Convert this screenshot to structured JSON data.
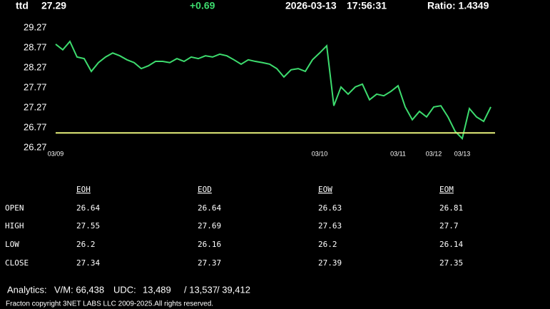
{
  "header": {
    "symbol": "ttd",
    "price": "27.29",
    "change": "+0.69",
    "date": "2026-03-13",
    "time": "17:56:31",
    "ratio": "Ratio: 1.4349"
  },
  "chart_data": {
    "type": "line",
    "color": "#3ddc6e",
    "categories": [
      "03/09",
      null,
      null,
      null,
      null,
      null,
      null,
      null,
      null,
      null,
      null,
      null,
      null,
      null,
      null,
      null,
      null,
      null,
      null,
      null,
      null,
      null,
      null,
      null,
      null,
      null,
      null,
      null,
      null,
      null,
      null,
      null,
      null,
      null,
      null,
      null,
      null,
      "03/10",
      null,
      null,
      null,
      null,
      null,
      null,
      null,
      null,
      null,
      null,
      "03/11",
      null,
      null,
      null,
      null,
      "03/12",
      null,
      null,
      null,
      "03/13",
      null,
      null,
      null,
      null
    ],
    "values": [
      28.86,
      28.72,
      28.93,
      28.54,
      28.5,
      28.18,
      28.4,
      28.54,
      28.64,
      28.57,
      28.47,
      28.4,
      28.25,
      28.32,
      28.43,
      28.43,
      28.4,
      28.5,
      28.43,
      28.54,
      28.5,
      28.57,
      28.54,
      28.61,
      28.57,
      28.47,
      28.36,
      28.47,
      28.43,
      28.4,
      28.36,
      28.25,
      28.04,
      28.22,
      28.25,
      28.18,
      28.47,
      28.64,
      28.82,
      27.32,
      27.79,
      27.61,
      27.79,
      27.86,
      27.47,
      27.61,
      27.57,
      27.68,
      27.82,
      27.29,
      26.97,
      27.18,
      27.04,
      27.29,
      27.32,
      27.04,
      26.68,
      26.5,
      27.25,
      27.04,
      26.93,
      27.29
    ],
    "ylim": [
      26.27,
      29.27
    ],
    "yticks": [
      26.27,
      26.77,
      27.27,
      27.77,
      28.27,
      28.77,
      29.27
    ],
    "reference_line": 26.64,
    "reference_color": "#e6f07a"
  },
  "table": {
    "columns": [
      "EOH",
      "EOD",
      "EOW",
      "EOM"
    ],
    "rows": [
      [
        "OPEN",
        "26.64",
        "26.64",
        "26.63",
        "26.81"
      ],
      [
        "HIGH",
        "27.55",
        "27.69",
        "27.63",
        "27.7"
      ],
      [
        "LOW",
        "26.2",
        "26.16",
        "26.2",
        "26.14"
      ],
      [
        "CLOSE",
        "27.34",
        "27.37",
        "27.39",
        "27.35"
      ]
    ]
  },
  "footer": {
    "analytics": [
      "Analytics:",
      "V/M: 66,438",
      "UDC:",
      "13,489",
      "/ 13,537",
      "/ 39,412"
    ],
    "copyright": "Fracton copyright 3NET LABS LLC 2009-2025.All rights reserved."
  }
}
